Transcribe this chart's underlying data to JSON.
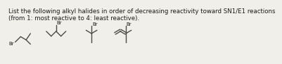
{
  "title_line1": "List the following alkyl halides in order of decreasing reactivity toward SN1/E1 reactions",
  "title_line2": "(from 1: most reactive to 4: least reactive).",
  "bg_color": "#f0efe9",
  "text_color": "#1a1a1a",
  "line_color": "#4a4a4a",
  "line_width": 1.0,
  "font_size_title": 6.2,
  "font_size_br": 5.0
}
